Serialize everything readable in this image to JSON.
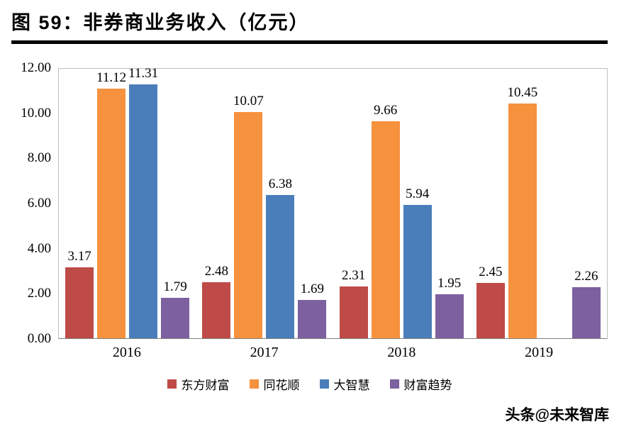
{
  "header": {
    "title": "图  59：非券商业务收入（亿元）"
  },
  "watermark": "头条@未来智库",
  "chart_data": {
    "type": "bar",
    "title": "图 59：非券商业务收入（亿元）",
    "categories": [
      "2016",
      "2017",
      "2018",
      "2019"
    ],
    "series": [
      {
        "name": "东方财富",
        "color": "#be4b48",
        "values": [
          3.17,
          2.48,
          2.31,
          2.45
        ]
      },
      {
        "name": "同花顺",
        "color": "#f6913e",
        "values": [
          11.12,
          10.07,
          9.66,
          10.45
        ]
      },
      {
        "name": "大智慧",
        "color": "#4a7ebb",
        "values": [
          11.31,
          6.38,
          5.94,
          null
        ]
      },
      {
        "name": "财富趋势",
        "color": "#7d60a0",
        "values": [
          1.79,
          1.69,
          1.95,
          2.26
        ]
      }
    ],
    "ylim": [
      0,
      12
    ],
    "yticks": [
      "12.00",
      "10.00",
      "8.00",
      "6.00",
      "4.00",
      "2.00",
      "0.00"
    ],
    "value_labels": true,
    "grid": false,
    "legend_position": "bottom"
  }
}
